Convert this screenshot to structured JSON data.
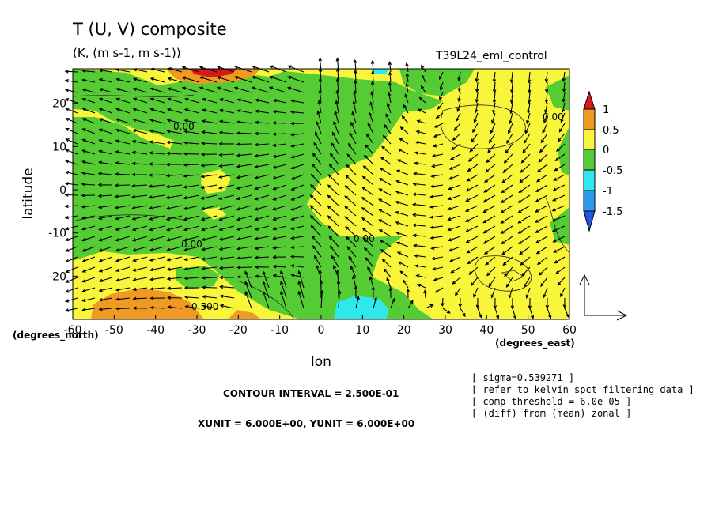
{
  "chart_data": {
    "type": "contour_vector",
    "title": "T (U, V) composite",
    "subtitle": "(K, (m s-1, m s-1))",
    "run_label": "T39L24_eml_control",
    "xlabel": "lon",
    "x_unit_label": "(degrees_east)",
    "ylabel": "latitude",
    "y_unit_label": "(degrees_north)",
    "xlim": [
      -60,
      60
    ],
    "ylim": [
      -30,
      28
    ],
    "x_ticks": [
      "-60",
      "-50",
      "-40",
      "-30",
      "-20",
      "-10",
      "0",
      "10",
      "20",
      "30",
      "40",
      "50",
      "60"
    ],
    "y_ticks": [
      "20",
      "10",
      "0",
      "-10",
      "-20"
    ],
    "colorbar": {
      "labels": [
        "1",
        "0.5",
        "0",
        "-0.5",
        "-1",
        "-1.5"
      ],
      "colors": {
        "above_1": "#d61a1a",
        "0.5_to_1": "#ef9a22",
        "0_to_0.5": "#f8f53a",
        "-0.5_to_0": "#55cc34",
        "-1_to_-0.5": "#2ee8ec",
        "-1.5_to_-1": "#2c9bed",
        "below_-1.5": "#2158e0"
      }
    },
    "contour_labels": [
      "0.00",
      "0.00",
      "0.00",
      "0.00",
      "0.500"
    ],
    "notes": [
      "[ sigma=0.539271 ]",
      "[ refer to kelvin spct filtering data ]",
      "[ comp threshold = 6.0e-05 ]",
      "[ (diff) from (mean) zonal ]"
    ],
    "contour_interval": "CONTOUR INTERVAL = 2.500E-01",
    "units_text": "XUNIT = 6.000E+00, YUNIT = 6.000E+00"
  }
}
